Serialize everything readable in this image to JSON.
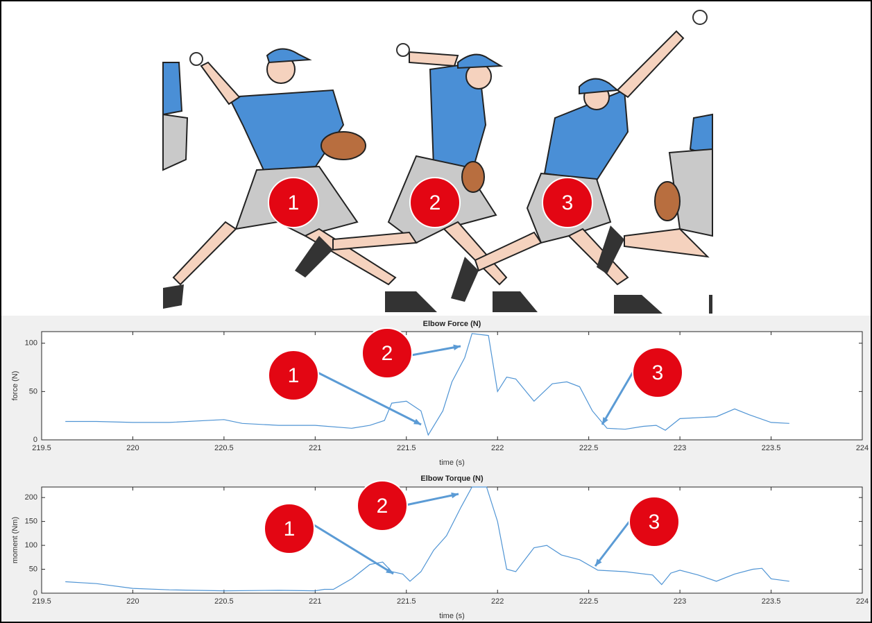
{
  "illustration": {
    "labels": [
      "1",
      "2",
      "3"
    ]
  },
  "chart_data": [
    {
      "type": "line",
      "title": "Elbow Force (N)",
      "x_label": "time (s)",
      "y_label": "force (N)",
      "x": [
        219.63,
        219.8,
        220,
        220.2,
        220.5,
        220.6,
        220.8,
        221,
        221.2,
        221.3,
        221.38,
        221.42,
        221.5,
        221.58,
        221.62,
        221.7,
        221.75,
        221.82,
        221.86,
        221.95,
        222,
        222.05,
        222.1,
        222.2,
        222.3,
        222.38,
        222.45,
        222.52,
        222.6,
        222.7,
        222.8,
        222.87,
        222.92,
        223,
        223.2,
        223.3,
        223.38,
        223.5,
        223.6
      ],
      "series": [
        {
          "color": "#4f94d4",
          "values": [
            19,
            19,
            18,
            18,
            21,
            17,
            15,
            15,
            12,
            15,
            20,
            38,
            40,
            30,
            5,
            30,
            60,
            85,
            110,
            108,
            50,
            65,
            63,
            40,
            58,
            60,
            55,
            30,
            12,
            11,
            14,
            15,
            10,
            22,
            24,
            32,
            26,
            18,
            17
          ]
        }
      ],
      "xlim": [
        219.5,
        224
      ],
      "xticks": [
        219.5,
        220,
        220.5,
        221,
        221.5,
        222,
        222.5,
        223,
        223.5,
        224
      ],
      "ylim": [
        0,
        112
      ],
      "yticks": [
        0,
        50,
        100
      ],
      "annotations": [
        "1",
        "2",
        "3"
      ]
    },
    {
      "type": "line",
      "title": "Elbow Torque (N)",
      "x_label": "time (s)",
      "y_label": "moment (Nm)",
      "x": [
        219.63,
        219.8,
        220,
        220.2,
        220.5,
        220.8,
        221,
        221.05,
        221.1,
        221.2,
        221.3,
        221.37,
        221.42,
        221.48,
        221.52,
        221.58,
        221.65,
        221.72,
        221.8,
        221.86,
        221.94,
        222,
        222.05,
        222.1,
        222.2,
        222.27,
        222.35,
        222.45,
        222.55,
        222.7,
        222.85,
        222.9,
        222.95,
        223,
        223.1,
        223.2,
        223.3,
        223.4,
        223.45,
        223.5,
        223.6
      ],
      "series": [
        {
          "color": "#4f94d4",
          "values": [
            24,
            20,
            10,
            7,
            5,
            6,
            5,
            8,
            8,
            30,
            60,
            65,
            45,
            40,
            25,
            45,
            90,
            120,
            180,
            222,
            222,
            150,
            50,
            45,
            95,
            100,
            80,
            70,
            48,
            45,
            38,
            18,
            42,
            48,
            38,
            25,
            40,
            50,
            52,
            30,
            25
          ]
        }
      ],
      "xlim": [
        219.5,
        224
      ],
      "xticks": [
        219.5,
        220,
        220.5,
        221,
        221.5,
        222,
        222.5,
        223,
        223.5,
        224
      ],
      "ylim": [
        0,
        222
      ],
      "yticks": [
        0,
        50,
        100,
        150,
        200
      ],
      "annotations": [
        "1",
        "2",
        "3"
      ]
    }
  ]
}
